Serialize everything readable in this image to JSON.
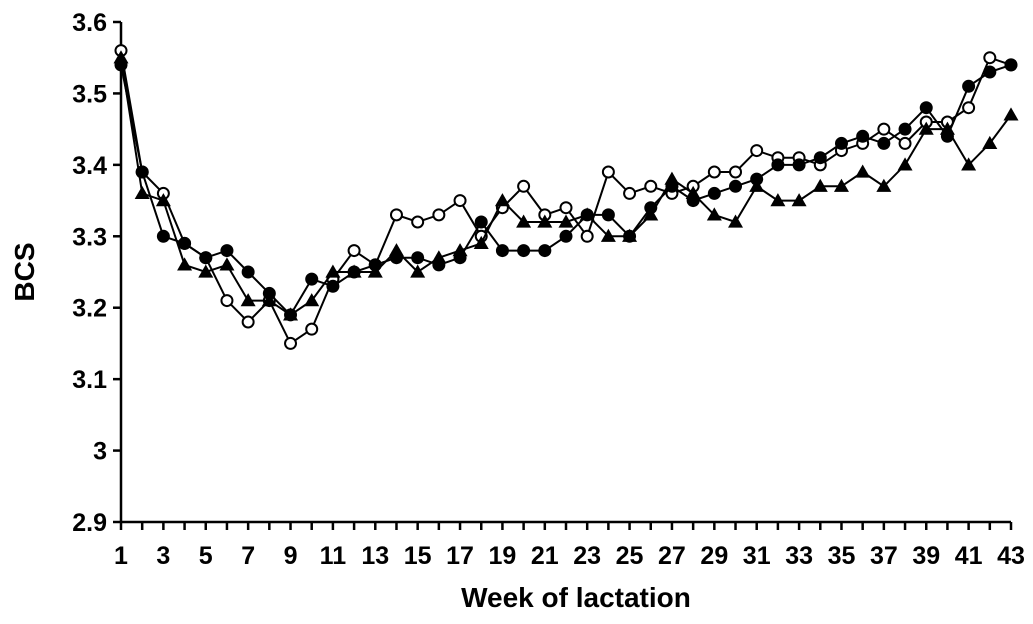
{
  "chart_data": {
    "type": "line",
    "xlabel": "Week of lactation",
    "ylabel": "BCS",
    "xlim": [
      1,
      43
    ],
    "ylim": [
      2.9,
      3.6
    ],
    "yticks": [
      "2.9",
      "3",
      "3.1",
      "3.2",
      "3.3",
      "3.4",
      "3.5",
      "3.6"
    ],
    "xticks": [
      "1",
      "3",
      "5",
      "7",
      "9",
      "11",
      "13",
      "15",
      "17",
      "19",
      "21",
      "23",
      "25",
      "27",
      "29",
      "31",
      "33",
      "35",
      "37",
      "39",
      "41",
      "43"
    ],
    "grid": false,
    "x": [
      1,
      2,
      3,
      4,
      5,
      6,
      7,
      8,
      9,
      10,
      11,
      12,
      13,
      14,
      15,
      16,
      17,
      18,
      19,
      20,
      21,
      22,
      23,
      24,
      25,
      26,
      27,
      28,
      29,
      30,
      31,
      32,
      33,
      34,
      35,
      36,
      37,
      38,
      39,
      40,
      41,
      42,
      43
    ],
    "series": [
      {
        "marker": "open-circle",
        "color": "#000000",
        "values": [
          3.56,
          3.39,
          3.36,
          3.29,
          3.27,
          3.21,
          3.18,
          3.21,
          3.15,
          3.17,
          3.24,
          3.28,
          3.26,
          3.33,
          3.32,
          3.33,
          3.35,
          3.3,
          3.34,
          3.37,
          3.33,
          3.34,
          3.3,
          3.39,
          3.36,
          3.37,
          3.36,
          3.37,
          3.39,
          3.39,
          3.42,
          3.41,
          3.41,
          3.4,
          3.42,
          3.43,
          3.45,
          3.43,
          3.46,
          3.46,
          3.48,
          3.55,
          3.54
        ]
      },
      {
        "marker": "filled-circle",
        "color": "#000000",
        "values": [
          3.54,
          3.39,
          3.3,
          3.29,
          3.27,
          3.28,
          3.25,
          3.22,
          3.19,
          3.24,
          3.23,
          3.25,
          3.26,
          3.27,
          3.27,
          3.26,
          3.27,
          3.32,
          3.28,
          3.28,
          3.28,
          3.3,
          3.33,
          3.33,
          3.3,
          3.34,
          3.37,
          3.35,
          3.36,
          3.37,
          3.38,
          3.4,
          3.4,
          3.41,
          3.43,
          3.44,
          3.43,
          3.45,
          3.48,
          3.44,
          3.51,
          3.53,
          3.54
        ]
      },
      {
        "marker": "filled-triangle",
        "color": "#000000",
        "values": [
          3.55,
          3.36,
          3.35,
          3.26,
          3.25,
          3.26,
          3.21,
          3.21,
          3.19,
          3.21,
          3.25,
          3.25,
          3.25,
          3.28,
          3.25,
          3.27,
          3.28,
          3.29,
          3.35,
          3.32,
          3.32,
          3.32,
          3.33,
          3.3,
          3.3,
          3.33,
          3.38,
          3.36,
          3.33,
          3.32,
          3.37,
          3.35,
          3.35,
          3.37,
          3.37,
          3.39,
          3.37,
          3.4,
          3.45,
          3.45,
          3.4,
          3.43,
          3.47
        ]
      }
    ]
  }
}
